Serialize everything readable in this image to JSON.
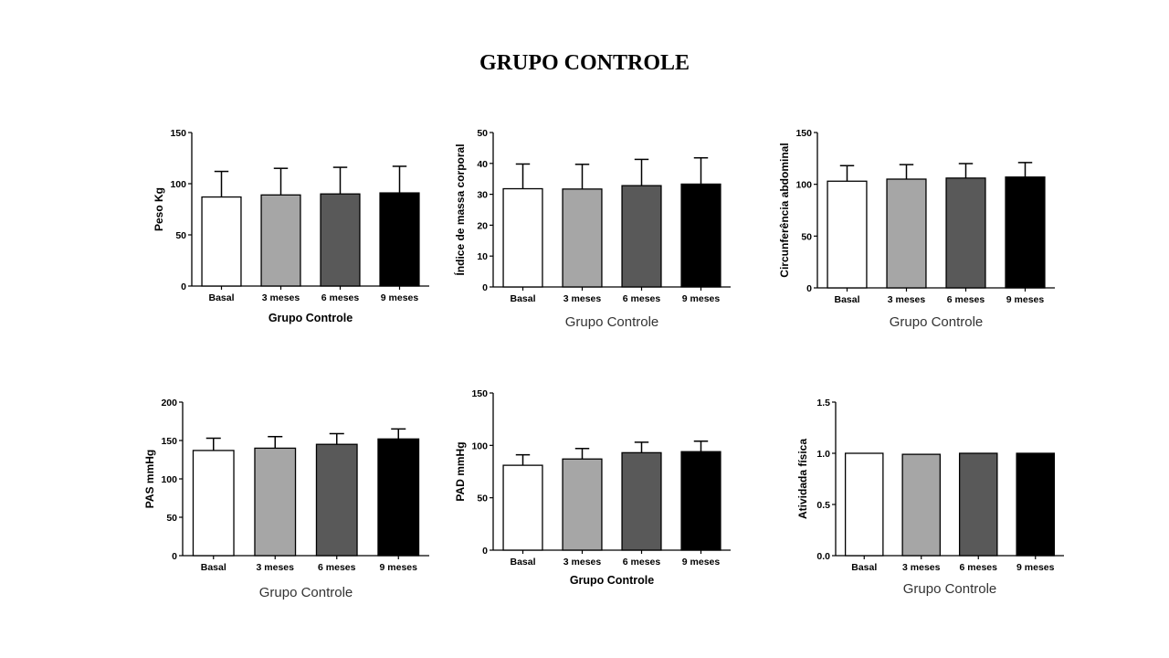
{
  "page_title": "GRUPO CONTROLE",
  "chart_data": [
    {
      "type": "bar",
      "ylabel": "Peso Kg",
      "xlabel": "Grupo Controle",
      "xlabel_bold": true,
      "categories": [
        "Basal",
        "3 meses",
        "6 meses",
        "9 meses"
      ],
      "values": [
        87,
        89,
        90,
        91
      ],
      "errors": [
        25,
        26,
        26,
        26
      ],
      "yticks": [
        "0",
        "50",
        "100",
        "150"
      ],
      "ylim": [
        0,
        150
      ]
    },
    {
      "type": "bar",
      "ylabel": "Índice de massa corporal",
      "xlabel": "Grupo Controle",
      "xlabel_bold": false,
      "categories": [
        "Basal",
        "3 meses",
        "6 meses",
        "9 meses"
      ],
      "values": [
        31.8,
        31.7,
        32.8,
        33.3
      ],
      "errors": [
        8,
        8,
        8.5,
        8.5
      ],
      "yticks": [
        "0",
        "10",
        "20",
        "30",
        "40",
        "50"
      ],
      "ylim": [
        0,
        50
      ]
    },
    {
      "type": "bar",
      "ylabel": "Circunferência abdominal",
      "xlabel": "Grupo Controle",
      "xlabel_bold": false,
      "categories": [
        "Basal",
        "3 meses",
        "6 meses",
        "9 meses"
      ],
      "values": [
        103,
        105,
        106,
        107
      ],
      "errors": [
        15,
        14,
        14,
        14
      ],
      "yticks": [
        "0",
        "50",
        "100",
        "150"
      ],
      "ylim": [
        0,
        150
      ]
    },
    {
      "type": "bar",
      "ylabel": "PAS mmHg",
      "xlabel": "Grupo Controle",
      "xlabel_bold": false,
      "categories": [
        "Basal",
        "3 meses",
        "6 meses",
        "9 meses"
      ],
      "values": [
        137,
        140,
        145,
        152
      ],
      "errors": [
        16,
        15,
        14,
        13
      ],
      "yticks": [
        "0",
        "50",
        "100",
        "150",
        "200"
      ],
      "ylim": [
        0,
        200
      ]
    },
    {
      "type": "bar",
      "ylabel": "PAD mmHg",
      "xlabel": "Grupo Controle",
      "xlabel_bold": true,
      "categories": [
        "Basal",
        "3 meses",
        "6 meses",
        "9 meses"
      ],
      "values": [
        81,
        87,
        93,
        94
      ],
      "errors": [
        10,
        10,
        10,
        10
      ],
      "yticks": [
        "0",
        "50",
        "100",
        "150"
      ],
      "ylim": [
        0,
        150
      ]
    },
    {
      "type": "bar",
      "ylabel": "Atividada física",
      "xlabel": "Grupo Controle",
      "xlabel_bold": false,
      "categories": [
        "Basal",
        "3 meses",
        "6 meses",
        "9 meses"
      ],
      "values": [
        1.0,
        0.99,
        1.0,
        1.0
      ],
      "errors": [
        0,
        0,
        0,
        0
      ],
      "yticks": [
        "0.0",
        "0.5",
        "1.0",
        "1.5"
      ],
      "ylim": [
        0,
        1.5
      ]
    }
  ],
  "bar_fills": [
    "#ffffff",
    "#a6a6a6",
    "#595959",
    "#000000"
  ]
}
